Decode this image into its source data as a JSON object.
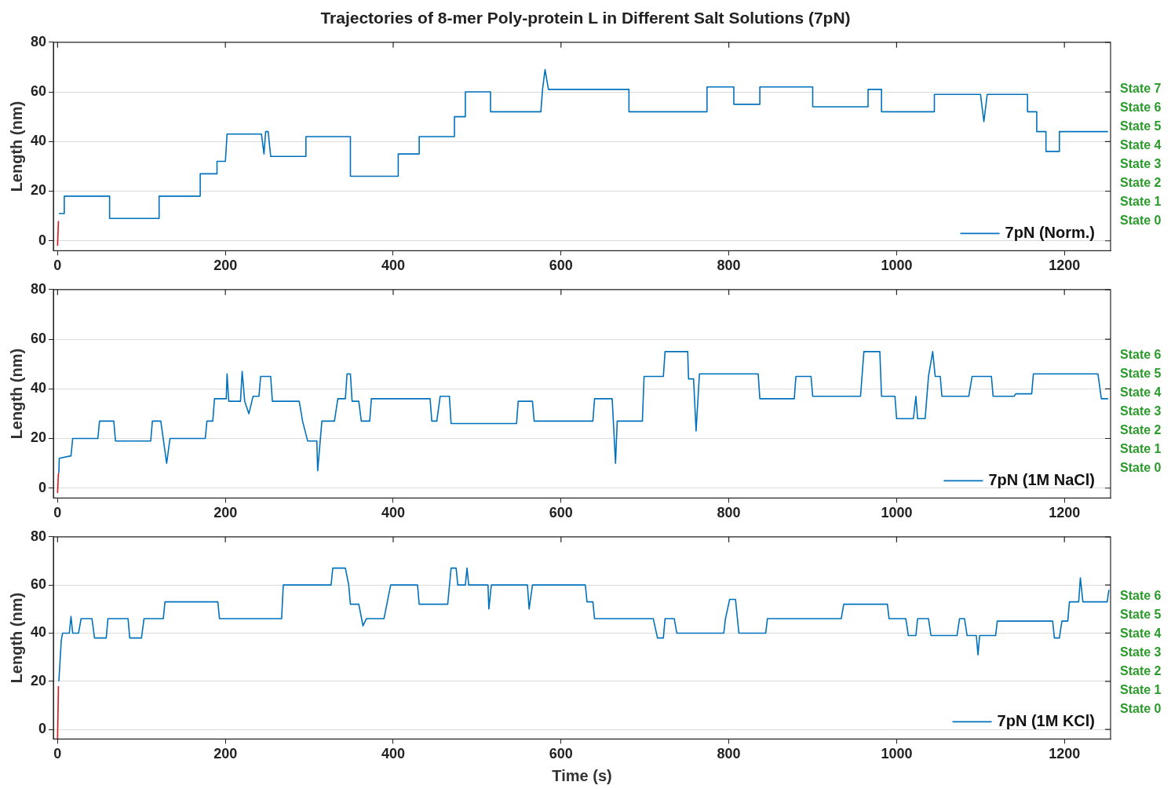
{
  "chart_data": [
    {
      "type": "line",
      "title": "Trajectories of 8-mer Poly-protein L in Different Salt Solutions (7pN)",
      "ylabel": "Length (nm)",
      "xlim": [
        -5,
        1255
      ],
      "ylim": [
        -4,
        80
      ],
      "xticks": [
        0,
        200,
        400,
        600,
        800,
        1000,
        1200
      ],
      "yticks": [
        0,
        20,
        40,
        60,
        80
      ],
      "grid": "y",
      "legend": "bottom right",
      "marker": "none",
      "line_style": "solid",
      "annotations": [
        "State 7",
        "State 6",
        "State 5",
        "State 4",
        "State 3",
        "State 2",
        "State 1",
        "State 0"
      ],
      "series": [
        {
          "name": "7pN (Norm.)",
          "color": "#0072bd",
          "x": [
            1.5,
            8,
            8,
            62,
            62,
            121,
            121,
            170,
            170,
            190,
            190,
            200,
            202,
            243,
            246,
            248,
            251,
            254,
            296,
            296,
            349,
            349,
            406,
            406,
            431,
            431,
            473,
            473,
            486,
            486,
            516,
            516,
            576,
            578,
            581,
            585,
            681,
            681,
            774,
            774,
            806,
            806,
            837,
            837,
            900,
            900,
            966,
            966,
            982,
            982,
            1045,
            1045,
            1100,
            1104,
            1108,
            1156,
            1156,
            1167,
            1167,
            1178,
            1178,
            1194,
            1194,
            1252
          ],
          "values": [
            11,
            11,
            18,
            18,
            9,
            9,
            18,
            18,
            27,
            27,
            32,
            32,
            43,
            43,
            35,
            44,
            44,
            34,
            34,
            42,
            42,
            26,
            26,
            35,
            35,
            42,
            42,
            50,
            50,
            60,
            60,
            52,
            52,
            61,
            69,
            61,
            61,
            52,
            52,
            62,
            62,
            55,
            55,
            62,
            62,
            54,
            54,
            61,
            61,
            52,
            52,
            59,
            59,
            48,
            59,
            59,
            52,
            52,
            44,
            44,
            36,
            36,
            44,
            44
          ]
        },
        {
          "color": "#e8141c",
          "x": [
            0,
            1
          ],
          "values": [
            -2,
            8
          ]
        }
      ]
    },
    {
      "type": "line",
      "ylabel": "Length (nm)",
      "xlim": [
        -5,
        1255
      ],
      "ylim": [
        -4,
        80
      ],
      "xticks": [
        0,
        200,
        400,
        600,
        800,
        1000,
        1200
      ],
      "yticks": [
        0,
        20,
        40,
        60,
        80
      ],
      "grid": "y",
      "legend": "bottom right",
      "marker": "none",
      "line_style": "solid",
      "annotations": [
        "State 6",
        "State 5",
        "State 4",
        "State 3",
        "State 2",
        "State 1",
        "State 0"
      ],
      "series": [
        {
          "name": "7pN (1M NaCl)",
          "color": "#0072bd",
          "x": [
            1.5,
            2,
            16,
            18,
            48,
            50,
            67,
            69,
            111,
            113,
            123,
            130,
            134,
            176,
            178,
            185,
            187,
            201,
            202,
            204,
            218,
            220,
            223,
            228,
            233,
            240,
            242,
            254,
            256,
            288,
            292,
            298,
            309,
            310,
            315,
            330,
            334,
            343,
            345,
            349,
            351,
            359,
            362,
            372,
            374,
            444,
            446,
            452,
            456,
            467,
            469,
            547,
            549,
            566,
            568,
            638,
            640,
            661,
            665,
            667,
            697,
            699,
            722,
            724,
            751,
            752,
            758,
            761,
            765,
            835,
            837,
            878,
            880,
            898,
            900,
            957,
            961,
            980,
            982,
            998,
            1000,
            1020,
            1023,
            1025,
            1034,
            1038,
            1043,
            1046,
            1052,
            1054,
            1086,
            1090,
            1113,
            1115,
            1140,
            1142,
            1161,
            1163,
            1240,
            1244,
            1252
          ],
          "values": [
            6,
            12,
            13,
            20,
            20,
            27,
            27,
            19,
            19,
            27,
            27,
            10,
            20,
            20,
            27,
            27,
            36,
            36,
            46,
            35,
            35,
            47,
            35,
            30,
            37,
            37,
            45,
            45,
            35,
            35,
            27,
            19,
            19,
            7,
            27,
            27,
            36,
            36,
            46,
            46,
            35,
            35,
            27,
            27,
            36,
            36,
            27,
            27,
            37,
            37,
            26,
            26,
            35,
            35,
            27,
            27,
            36,
            36,
            10,
            27,
            27,
            45,
            45,
            55,
            55,
            44,
            44,
            23,
            46,
            46,
            36,
            36,
            45,
            45,
            37,
            37,
            55,
            55,
            37,
            37,
            28,
            28,
            37,
            28,
            28,
            45,
            55,
            45,
            45,
            37,
            37,
            45,
            45,
            37,
            37,
            38,
            38,
            46,
            46,
            36,
            36
          ]
        },
        {
          "color": "#e8141c",
          "x": [
            0,
            1
          ],
          "values": [
            -2,
            6
          ]
        }
      ]
    },
    {
      "type": "line",
      "xlabel": "Time (s)",
      "ylabel": "Length (nm)",
      "xlim": [
        -5,
        1255
      ],
      "ylim": [
        -4,
        80
      ],
      "xticks": [
        0,
        200,
        400,
        600,
        800,
        1000,
        1200
      ],
      "yticks": [
        0,
        20,
        40,
        60,
        80
      ],
      "grid": "y",
      "legend": "bottom right",
      "marker": "none",
      "line_style": "solid",
      "annotations": [
        "State 6",
        "State 5",
        "State 4",
        "State 3",
        "State 2",
        "State 1",
        "State 0"
      ],
      "series": [
        {
          "name": "7pN (1M KCl)",
          "color": "#0072bd",
          "x": [
            1.5,
            4.4,
            6,
            14,
            16,
            18,
            25,
            28,
            41,
            44,
            58,
            60,
            84,
            86,
            100,
            103,
            126,
            128,
            191,
            193,
            267,
            269,
            326,
            328,
            343,
            347,
            349,
            359,
            364,
            368,
            389,
            393,
            397,
            429,
            431,
            465,
            469,
            475,
            477,
            486,
            488,
            490,
            513,
            514,
            517,
            560,
            562,
            566,
            629,
            631,
            638,
            640,
            710,
            715,
            722,
            724,
            735,
            738,
            794,
            796,
            801,
            808,
            812,
            844,
            846,
            934,
            937,
            989,
            991,
            1011,
            1014,
            1023,
            1025,
            1038,
            1041,
            1072,
            1075,
            1081,
            1084,
            1095,
            1097,
            1099,
            1118,
            1120,
            1186,
            1188,
            1194,
            1197,
            1204,
            1206,
            1217,
            1219,
            1222,
            1251,
            1253
          ],
          "values": [
            20,
            37,
            40,
            40,
            47,
            40,
            40,
            46,
            46,
            38,
            38,
            46,
            46,
            38,
            38,
            46,
            46,
            53,
            53,
            46,
            46,
            60,
            60,
            67,
            67,
            60,
            52,
            52,
            43,
            46,
            46,
            53,
            60,
            60,
            52,
            52,
            67,
            67,
            60,
            60,
            67,
            60,
            60,
            50,
            60,
            60,
            50,
            60,
            60,
            53,
            53,
            46,
            46,
            38,
            38,
            46,
            46,
            40,
            40,
            46,
            54,
            54,
            40,
            40,
            46,
            46,
            52,
            52,
            46,
            46,
            39,
            39,
            46,
            46,
            39,
            39,
            46,
            46,
            39,
            39,
            31,
            39,
            39,
            45,
            45,
            38,
            38,
            45,
            45,
            53,
            53,
            63,
            53,
            53,
            58
          ]
        },
        {
          "color": "#e8141c",
          "x": [
            0,
            1
          ],
          "values": [
            -4,
            18
          ]
        }
      ]
    }
  ]
}
